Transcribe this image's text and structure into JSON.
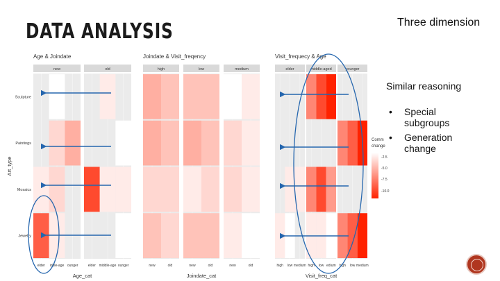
{
  "slide": {
    "title": "DATA ANALYSIS",
    "right_title": "Three dimension",
    "reasoning": "Similar reasoning",
    "bullets": [
      "Special subgroups",
      "Generation change"
    ],
    "bullet_lines": [
      [
        "Special",
        "subgroups"
      ],
      [
        "Generation",
        "change"
      ]
    ],
    "bullet_char": "•"
  },
  "chart_data": [
    {
      "type": "heatmap",
      "title": "Age & Joindate",
      "facets": [
        "new",
        "old"
      ],
      "x_categories": [
        "elder",
        "middle-aged",
        "younger"
      ],
      "x_tick_labels": [
        "elder",
        "iddle-age",
        "ounger",
        "elder",
        "middle-age",
        "ounger"
      ],
      "y_categories": [
        "Sculpture",
        "Paintings",
        "Mosaics",
        "Jewelry"
      ],
      "xlabel": "Age_cat",
      "ylabel": "Art_type",
      "values": {
        "new": [
          [
            null,
            0,
            null
          ],
          [
            null,
            -2,
            -4
          ],
          [
            -1,
            -2,
            null
          ],
          [
            -8,
            -1,
            null
          ]
        ],
        "old": [
          [
            null,
            -1,
            null
          ],
          [
            null,
            null,
            0
          ],
          [
            -9,
            -1,
            -1
          ],
          [
            null,
            null,
            0
          ]
        ]
      }
    },
    {
      "type": "heatmap",
      "title": "Joindate & Visit_freqency",
      "facets": [
        "high",
        "low",
        "medium"
      ],
      "x_categories": [
        "new",
        "old"
      ],
      "y_categories": [
        "Sculpture",
        "Paintings",
        "Mosaics",
        "Jewelry"
      ],
      "xlabel": "Joindate_cat",
      "values": {
        "high": [
          [
            -4,
            -3
          ],
          [
            -4,
            -3
          ],
          [
            -2,
            -2
          ],
          [
            -3,
            -2
          ]
        ],
        "low": [
          [
            -3,
            -3
          ],
          [
            -4,
            -3
          ],
          [
            -1,
            -2
          ],
          [
            -3,
            -3
          ]
        ],
        "medium": [
          [
            0,
            -1
          ],
          [
            -2,
            -1
          ],
          [
            -2,
            -1
          ],
          [
            -1,
            0
          ]
        ]
      }
    },
    {
      "type": "heatmap",
      "title": "Visit_frequecy & Age",
      "facets": [
        "elder",
        "middle-aged",
        "younger"
      ],
      "x_categories": [
        "high",
        "low",
        "medium"
      ],
      "x_tick_labels": [
        "high",
        "low",
        "medium",
        "high",
        "low",
        "edium",
        "high",
        "low",
        "medium"
      ],
      "y_categories": [
        "Sculpture",
        "Paintings",
        "Mosaics",
        "Jewelry"
      ],
      "xlabel": "Visit_freq_cat",
      "legend": {
        "title_lines": [
          "Comm",
          "change"
        ],
        "ticks": [
          "-2.5",
          "-5.0",
          "-7.5",
          "-10.0"
        ],
        "range": [
          -11,
          0
        ]
      },
      "values": {
        "elder": [
          [
            null,
            null,
            null
          ],
          [
            null,
            null,
            null
          ],
          [
            null,
            -1,
            -1
          ],
          [
            -1,
            0,
            null
          ]
        ],
        "middle-aged": [
          [
            -6,
            -9,
            -11
          ],
          [
            null,
            null,
            null
          ],
          [
            -6,
            -9,
            -5
          ],
          [
            -1,
            -1,
            0
          ]
        ],
        "younger": [
          [
            null,
            null,
            null
          ],
          [
            -6,
            -8,
            -11
          ],
          [
            null,
            null,
            null
          ],
          [
            -6,
            -8,
            -11
          ]
        ]
      }
    }
  ],
  "colors": {
    "high": "#ff2200",
    "low": "#ffffff",
    "panel": "#ebebeb",
    "strip": "#d9d9d9",
    "arrow": "#2566ae",
    "ellipse": "#2566ae",
    "nav": "#b0361f"
  }
}
